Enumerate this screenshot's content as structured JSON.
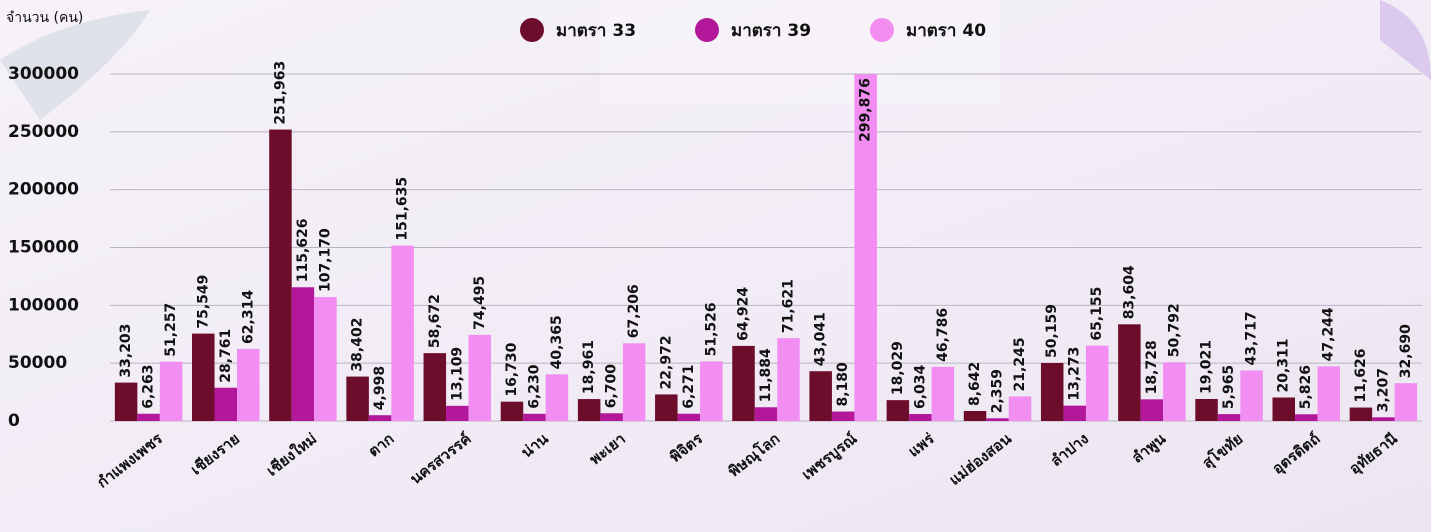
{
  "chart_data": {
    "type": "bar",
    "y_label": "จำนวน (คน)",
    "categories": [
      "กำแพงเพชร",
      "เชียงราย",
      "เชียงใหม่",
      "ตาก",
      "นครสวรรค์",
      "น่าน",
      "พะเยา",
      "พิจิตร",
      "พิษณุโลก",
      "เพชรบูรณ์",
      "แพร่",
      "แม่ฮ่องสอน",
      "ลำปาง",
      "ลำพูน",
      "สุโขทัย",
      "อุตรดิตถ์",
      "อุทัยธานี"
    ],
    "series": [
      {
        "name": "มาตรา 33",
        "color": "#6b0d2b",
        "values": [
          33203,
          75549,
          251963,
          38402,
          58672,
          16730,
          18961,
          22972,
          64924,
          43041,
          18029,
          8642,
          50159,
          83604,
          19021,
          20311,
          11626
        ],
        "value_labels": [
          "33,203",
          "75,549",
          "251,963",
          "38,402",
          "58,672",
          "16,730",
          "18,961",
          "22,972",
          "64,924",
          "43,041",
          "18,029",
          "8,642",
          "50,159",
          "83,604",
          "19,021",
          "20,311",
          "11,626"
        ]
      },
      {
        "name": "มาตรา 39",
        "color": "#b3189a",
        "values": [
          6263,
          28761,
          115626,
          4998,
          13109,
          6230,
          6700,
          6271,
          11884,
          8180,
          6034,
          2359,
          13273,
          18728,
          5965,
          5826,
          3207
        ],
        "value_labels": [
          "6,263",
          "28,761",
          "115,626",
          "4,998",
          "13,109",
          "6,230",
          "6,700",
          "6,271",
          "11,884",
          "8,180",
          "6,034",
          "2,359",
          "13,273",
          "18,728",
          "5,965",
          "5,826",
          "3,207"
        ]
      },
      {
        "name": "มาตรา 40",
        "color": "#f28ef2",
        "values": [
          51257,
          62314,
          107170,
          151635,
          74495,
          40365,
          67206,
          51526,
          71621,
          299876,
          46786,
          21245,
          65155,
          50792,
          43717,
          47244,
          32690
        ],
        "value_labels": [
          "51,257",
          "62,314",
          "107,170",
          "151,635",
          "74,495",
          "40,365",
          "67,206",
          "51,526",
          "71,621",
          "299,876",
          "46,786",
          "21,245",
          "65,155",
          "50,792",
          "43,717",
          "47,244",
          "32,690"
        ]
      }
    ],
    "ylim": [
      0,
      300000
    ],
    "yticks": [
      0,
      50000,
      100000,
      150000,
      200000,
      250000,
      300000
    ],
    "grid": true
  }
}
